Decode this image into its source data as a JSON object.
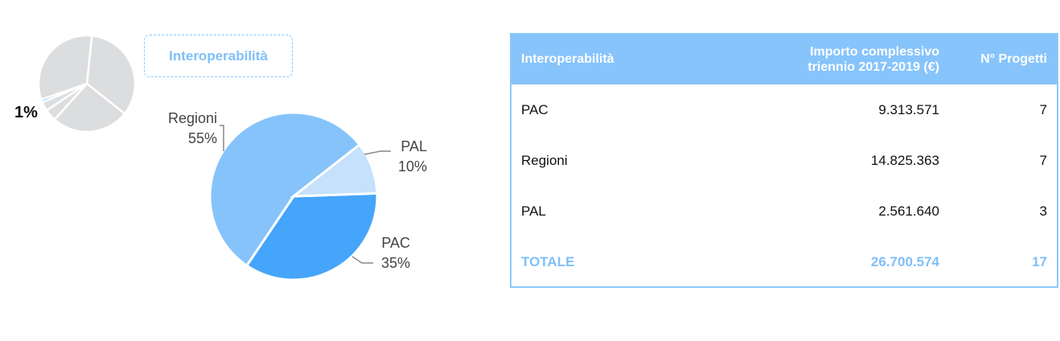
{
  "overview": {
    "small_pie_slices": [
      {
        "label": "",
        "value": 34,
        "color": "#dcdddf"
      },
      {
        "label": "",
        "value": 26,
        "color": "#dcdddf"
      },
      {
        "label": "",
        "value": 4,
        "color": "#dcdddf"
      },
      {
        "label": "",
        "value": 3,
        "color": "#dcdddf"
      },
      {
        "label": "",
        "value": 1,
        "color": "#8cc8fb"
      },
      {
        "label": "",
        "value": 32,
        "color": "#dcdddf"
      }
    ],
    "highlight_pct": "1%",
    "callout_label": "Interoperabilità"
  },
  "chart_data": {
    "type": "pie",
    "slices": [
      {
        "name": "PAC",
        "pct": "35%",
        "value": 35,
        "color": "#45a5fa"
      },
      {
        "name": "Regioni",
        "pct": "55%",
        "value": 55,
        "color": "#86c3fb"
      },
      {
        "name": "PAL",
        "pct": "10%",
        "value": 10,
        "color": "#c5e1fc"
      }
    ]
  },
  "table": {
    "headers": {
      "name": "Interoperabilità",
      "amount_line1": "Importo complessivo",
      "amount_line2": "triennio 2017-2019 (€)",
      "count": "N° Progetti"
    },
    "rows": [
      {
        "name": "PAC",
        "amount": "9.313.571",
        "count": "7"
      },
      {
        "name": "Regioni",
        "amount": "14.825.363",
        "count": "7"
      },
      {
        "name": "PAL",
        "amount": "2.561.640",
        "count": "3"
      }
    ],
    "total": {
      "name": "TOTALE",
      "amount": "26.700.574",
      "count": "17"
    }
  },
  "colors": {
    "accent": "#7fbff9",
    "header_bg": "#87c4fb",
    "border": "#8cc8fb"
  }
}
